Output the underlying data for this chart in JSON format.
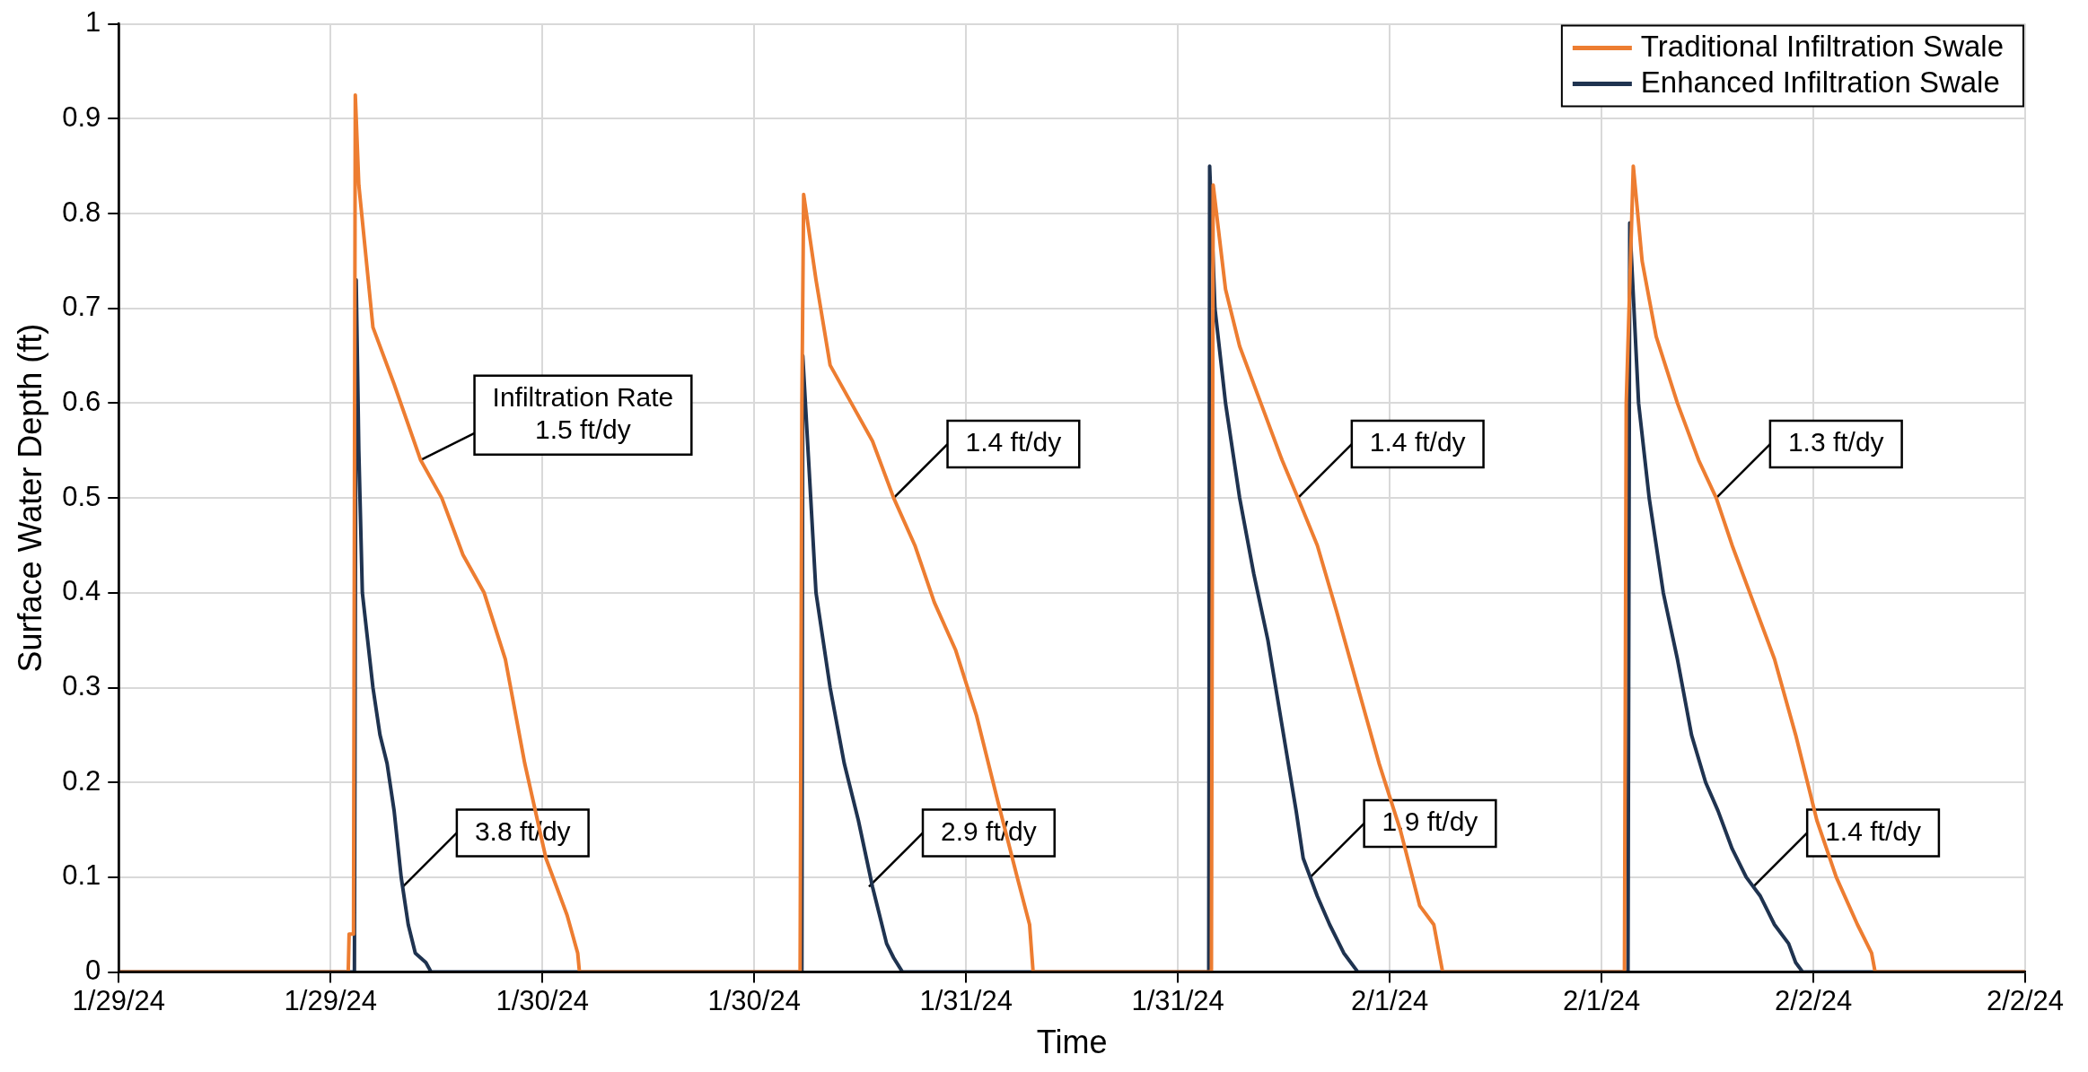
{
  "chart_data": {
    "type": "line",
    "xlabel": "Time",
    "ylabel": "Surface Water Depth (ft)",
    "xlim": [
      "--01-29T00:00",
      "--02-02T12:00"
    ],
    "xticks": [
      {
        "value": "--01-29T00:00",
        "label": "1/29/24"
      },
      {
        "value": "--01-29T12:00",
        "label": "1/29/24"
      },
      {
        "value": "--01-30T00:00",
        "label": "1/30/24"
      },
      {
        "value": "--01-30T12:00",
        "label": "1/30/24"
      },
      {
        "value": "--01-31T00:00",
        "label": "1/31/24"
      },
      {
        "value": "--01-31T12:00",
        "label": "1/31/24"
      },
      {
        "value": "--02-01T00:00",
        "label": "2/1/24"
      },
      {
        "value": "--02-01T12:00",
        "label": "2/1/24"
      },
      {
        "value": "--02-02T00:00",
        "label": "2/2/24"
      },
      {
        "value": "--02-02T12:00",
        "label": "2/2/24"
      }
    ],
    "ylim": [
      0,
      1
    ],
    "yticks": [
      0,
      0.1,
      0.2,
      0.3,
      0.4,
      0.5,
      0.6,
      0.7,
      0.8,
      0.9,
      1
    ],
    "grid": true,
    "legend": "top right",
    "marker": "none",
    "line_style": "solid",
    "series": [
      {
        "name": "Traditional Infiltration Swale",
        "color": "#ed7d31",
        "x": [
          "--01-29T00:00",
          "--01-29T13:00",
          "--01-29T13:03",
          "--01-29T13:18",
          "--01-29T13:24",
          "--01-29T13:36",
          "--01-29T14:24",
          "--01-29T15:36",
          "--01-29T17:06",
          "--01-29T18:18",
          "--01-29T19:30",
          "--01-29T20:42",
          "--01-29T21:54",
          "--01-29T23:00",
          "--01-30T00:12",
          "--01-30T01:24",
          "--01-30T02:00",
          "--01-30T02:06",
          "--01-30T14:36",
          "--01-30T14:42",
          "--01-30T14:48",
          "--01-30T15:30",
          "--01-30T16:18",
          "--01-30T17:30",
          "--01-30T18:42",
          "--01-30T19:54",
          "--01-30T21:06",
          "--01-30T22:12",
          "--01-30T23:24",
          "--01-31T00:36",
          "--01-31T01:48",
          "--01-31T02:54",
          "--01-31T03:36",
          "--01-31T03:48",
          "--01-31T13:54",
          "--01-31T14:00",
          "--01-31T14:42",
          "--01-31T15:30",
          "--01-31T16:42",
          "--01-31T17:54",
          "--01-31T18:48",
          "--01-31T19:54",
          "--01-31T21:00",
          "--01-31T22:12",
          "--01-31T23:24",
          "--02-01T00:36",
          "--02-01T01:42",
          "--02-01T02:30",
          "--02-01T03:00",
          "--02-01T13:18",
          "--02-01T13:24",
          "--02-01T13:48",
          "--02-01T14:18",
          "--02-01T15:06",
          "--02-01T16:18",
          "--02-01T17:30",
          "--02-01T18:30",
          "--02-01T19:24",
          "--02-01T20:36",
          "--02-01T21:48",
          "--02-01T23:00",
          "--02-02T00:12",
          "--02-02T01:18",
          "--02-02T02:30",
          "--02-02T03:18",
          "--02-02T03:30",
          "--02-02T12:00"
        ],
        "values": [
          0,
          0,
          0.04,
          0.04,
          0.925,
          0.83,
          0.68,
          0.62,
          0.54,
          0.5,
          0.44,
          0.4,
          0.33,
          0.22,
          0.12,
          0.06,
          0.02,
          0,
          0,
          0.6,
          0.82,
          0.73,
          0.64,
          0.6,
          0.56,
          0.5,
          0.45,
          0.39,
          0.34,
          0.27,
          0.18,
          0.1,
          0.05,
          0,
          0,
          0.83,
          0.72,
          0.66,
          0.6,
          0.54,
          0.5,
          0.45,
          0.38,
          0.3,
          0.22,
          0.15,
          0.07,
          0.05,
          0,
          0,
          0.6,
          0.85,
          0.75,
          0.67,
          0.6,
          0.54,
          0.5,
          0.45,
          0.39,
          0.33,
          0.25,
          0.16,
          0.1,
          0.05,
          0.02,
          0,
          0
        ]
      },
      {
        "name": "Enhanced Infiltration Swale",
        "color": "#1f3350",
        "x": [
          "--01-29T00:00",
          "--01-29T13:21",
          "--01-29T13:27",
          "--01-29T13:36",
          "--01-29T13:48",
          "--01-29T14:06",
          "--01-29T14:24",
          "--01-29T14:48",
          "--01-29T15:12",
          "--01-29T15:36",
          "--01-29T16:00",
          "--01-29T16:24",
          "--01-29T16:48",
          "--01-29T17:24",
          "--01-29T17:42",
          "--01-30T14:42",
          "--01-30T14:45",
          "--01-30T15:12",
          "--01-30T15:30",
          "--01-30T16:18",
          "--01-30T17:06",
          "--01-30T17:54",
          "--01-30T18:42",
          "--01-30T19:30",
          "--01-30T19:54",
          "--01-30T20:24",
          "--01-31T13:45",
          "--01-31T13:48",
          "--01-31T14:06",
          "--01-31T14:42",
          "--01-31T15:30",
          "--01-31T16:18",
          "--01-31T17:06",
          "--01-31T17:54",
          "--01-31T18:42",
          "--01-31T19:06",
          "--01-31T19:54",
          "--01-31T20:36",
          "--01-31T21:24",
          "--01-31T22:12",
          "--02-01T13:30",
          "--02-01T13:36",
          "--02-01T14:06",
          "--02-01T14:42",
          "--02-01T15:30",
          "--02-01T16:18",
          "--02-01T17:06",
          "--02-01T17:54",
          "--02-01T18:36",
          "--02-01T19:24",
          "--02-01T20:12",
          "--02-01T21:00",
          "--02-01T21:48",
          "--02-01T22:36",
          "--02-01T23:00",
          "--02-01T23:24",
          "--02-02T12:00"
        ],
        "values": [
          0,
          0,
          0.73,
          0.55,
          0.4,
          0.35,
          0.3,
          0.25,
          0.22,
          0.17,
          0.1,
          0.05,
          0.02,
          0.01,
          0,
          0,
          0.65,
          0.5,
          0.4,
          0.3,
          0.22,
          0.16,
          0.09,
          0.03,
          0.015,
          0,
          0,
          0.85,
          0.7,
          0.6,
          0.5,
          0.42,
          0.35,
          0.26,
          0.17,
          0.12,
          0.08,
          0.05,
          0.02,
          0,
          0,
          0.79,
          0.6,
          0.5,
          0.4,
          0.33,
          0.25,
          0.2,
          0.17,
          0.13,
          0.1,
          0.08,
          0.05,
          0.03,
          0.01,
          0,
          0
        ]
      }
    ],
    "annotations": [
      {
        "text": "Infiltration Rate\n1.5 ft/dy",
        "x": "--01-29T17:06",
        "y": 0.54
      },
      {
        "text": "1.4 ft/dy",
        "x": "--01-30T19:54",
        "y": 0.5
      },
      {
        "text": "1.4 ft/dy",
        "x": "--01-31T18:48",
        "y": 0.5
      },
      {
        "text": "1.3 ft/dy",
        "x": "--02-01T18:30",
        "y": 0.5
      },
      {
        "text": "3.8 ft/dy",
        "x": "--01-29T16:06",
        "y": 0.09
      },
      {
        "text": "2.9 ft/dy",
        "x": "--01-30T18:30",
        "y": 0.09
      },
      {
        "text": "1.9 ft/dy",
        "x": "--01-31T19:30",
        "y": 0.1
      },
      {
        "text": "1.4 ft/dy",
        "x": "--02-01T20:36",
        "y": 0.09
      }
    ]
  }
}
